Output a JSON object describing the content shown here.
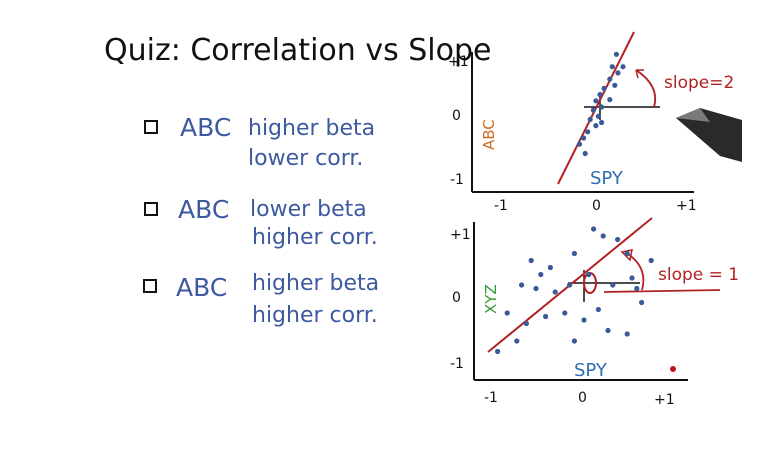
{
  "title": "Quiz: Correlation vs Slope",
  "options": [
    {
      "name": "ABC",
      "line1": "higher beta",
      "line2": "lower corr."
    },
    {
      "name": "ABC",
      "line1": "lower beta",
      "line2": "higher corr."
    },
    {
      "name": "ABC",
      "line1": "higher beta",
      "line2": "higher corr."
    }
  ],
  "icons": {
    "checkbox": "empty-checkbox-icon",
    "pen": "pen-icon"
  },
  "colors": {
    "option_text": "#3d5aa0",
    "slope_annotation": "#b22222",
    "spy_label": "#2f6db5",
    "abc_label": "#d2691e",
    "xyz_label": "#2e9b2e"
  },
  "chart_data": [
    {
      "type": "scatter",
      "xlabel": "SPY",
      "ylabel": "ABC",
      "x_ticks": [
        "-1",
        "0",
        "+1"
      ],
      "y_ticks": [
        "+1",
        "0",
        "-1"
      ],
      "xlim": [
        -1,
        1
      ],
      "ylim": [
        -1,
        1
      ],
      "annotation": "slope=2",
      "fit_slope": 2,
      "points": [
        {
          "x": 0.2,
          "y": 0.85
        },
        {
          "x": 0.28,
          "y": 0.65
        },
        {
          "x": 0.22,
          "y": 0.55
        },
        {
          "x": 0.12,
          "y": 0.45
        },
        {
          "x": 0.18,
          "y": 0.35
        },
        {
          "x": 0.05,
          "y": 0.3
        },
        {
          "x": 0.0,
          "y": 0.2
        },
        {
          "x": 0.12,
          "y": 0.12
        },
        {
          "x": -0.05,
          "y": 0.1
        },
        {
          "x": 0.02,
          "y": 0.0
        },
        {
          "x": -0.08,
          "y": -0.05
        },
        {
          "x": -0.02,
          "y": -0.15
        },
        {
          "x": -0.12,
          "y": -0.2
        },
        {
          "x": -0.05,
          "y": -0.3
        },
        {
          "x": -0.15,
          "y": -0.4
        },
        {
          "x": -0.2,
          "y": -0.5
        },
        {
          "x": -0.25,
          "y": -0.6
        },
        {
          "x": 0.02,
          "y": -0.25
        },
        {
          "x": -0.18,
          "y": -0.75
        },
        {
          "x": 0.15,
          "y": 0.65
        }
      ]
    },
    {
      "type": "scatter",
      "xlabel": "SPY",
      "ylabel": "XYZ",
      "x_ticks": [
        "-1",
        "0",
        "+1"
      ],
      "y_ticks": [
        "+1",
        "0",
        "-1"
      ],
      "xlim": [
        -1,
        1
      ],
      "ylim": [
        -1,
        1
      ],
      "annotation": "slope = 1",
      "fit_slope": 1,
      "points": [
        {
          "x": -0.55,
          "y": 0.45
        },
        {
          "x": -0.35,
          "y": 0.35
        },
        {
          "x": -0.1,
          "y": 0.55
        },
        {
          "x": 0.1,
          "y": 0.9
        },
        {
          "x": 0.2,
          "y": 0.8
        },
        {
          "x": 0.35,
          "y": 0.75
        },
        {
          "x": 0.45,
          "y": 0.55
        },
        {
          "x": -0.65,
          "y": 0.1
        },
        {
          "x": -0.5,
          "y": 0.05
        },
        {
          "x": -0.3,
          "y": 0.0
        },
        {
          "x": -0.15,
          "y": 0.1
        },
        {
          "x": 0.05,
          "y": 0.25
        },
        {
          "x": 0.3,
          "y": 0.1
        },
        {
          "x": 0.5,
          "y": 0.2
        },
        {
          "x": 0.6,
          "y": -0.15
        },
        {
          "x": -0.8,
          "y": -0.3
        },
        {
          "x": -0.6,
          "y": -0.45
        },
        {
          "x": -0.4,
          "y": -0.35
        },
        {
          "x": -0.2,
          "y": -0.3
        },
        {
          "x": 0.0,
          "y": -0.4
        },
        {
          "x": 0.15,
          "y": -0.25
        },
        {
          "x": 0.25,
          "y": -0.55
        },
        {
          "x": 0.45,
          "y": -0.6
        },
        {
          "x": -0.7,
          "y": -0.7
        },
        {
          "x": -0.1,
          "y": -0.7
        },
        {
          "x": 0.55,
          "y": 0.05
        },
        {
          "x": -0.45,
          "y": 0.25
        },
        {
          "x": 0.7,
          "y": 0.45
        },
        {
          "x": -0.9,
          "y": -0.85
        }
      ]
    }
  ]
}
